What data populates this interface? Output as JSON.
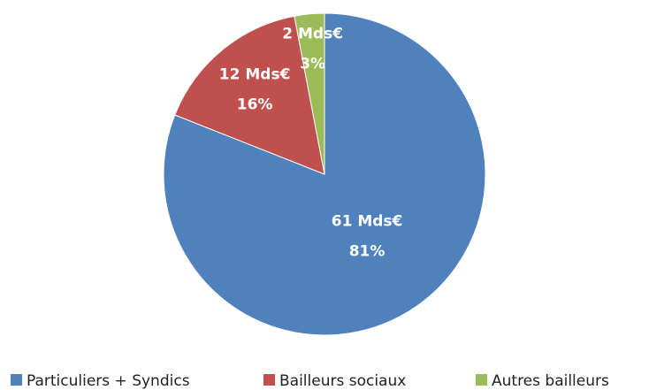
{
  "chart_data": {
    "type": "pie",
    "categories": [
      "Particuliers + Syndics",
      "Bailleurs sociaux",
      "Autres bailleurs"
    ],
    "values": [
      81,
      16,
      3
    ],
    "value_labels": [
      "81%",
      "16%",
      "3%"
    ],
    "amounts": [
      61,
      12,
      2
    ],
    "amount_labels": [
      "61 Mds€",
      "12 Mds€",
      "2 Mds€"
    ],
    "colors": [
      "#4f81bd",
      "#c0504d",
      "#9bbb59"
    ],
    "legend": "bottom"
  }
}
